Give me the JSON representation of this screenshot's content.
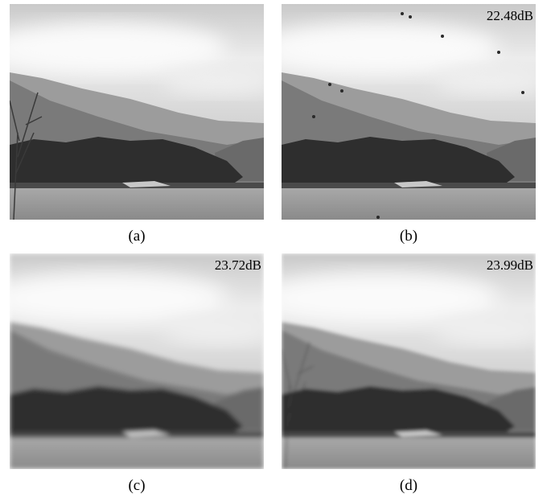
{
  "panels": [
    {
      "caption": "(a)"
    },
    {
      "caption": "(b)",
      "psnr": "22.48dB"
    },
    {
      "caption": "(c)",
      "psnr": "23.72dB"
    },
    {
      "caption": "(d)",
      "psnr": "23.99dB"
    }
  ]
}
